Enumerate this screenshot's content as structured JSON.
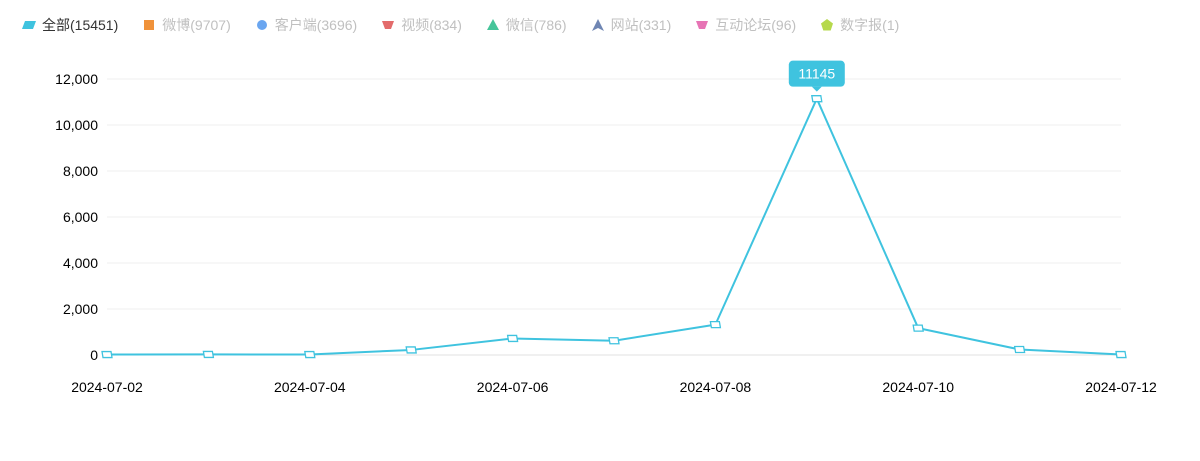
{
  "legend": {
    "items": [
      {
        "label": "全部(15451)",
        "color": "#3fc3df",
        "shape": "parallelogram",
        "active": true,
        "icon": "parallelogram-icon"
      },
      {
        "label": "微博(9707)",
        "color": "#f0923a",
        "shape": "square",
        "active": false,
        "icon": "square-icon"
      },
      {
        "label": "客户端(3696)",
        "color": "#6aa6f0",
        "shape": "circle",
        "active": false,
        "icon": "circle-icon"
      },
      {
        "label": "视频(834)",
        "color": "#e36b6b",
        "shape": "trapezoid",
        "active": false,
        "icon": "trapezoid-icon"
      },
      {
        "label": "微信(786)",
        "color": "#46c59a",
        "shape": "triangle",
        "active": false,
        "icon": "triangle-icon"
      },
      {
        "label": "网站(331)",
        "color": "#6f86b3",
        "shape": "arrow",
        "active": false,
        "icon": "arrow-icon"
      },
      {
        "label": "互动论坛(96)",
        "color": "#e774b5",
        "shape": "trapezoid",
        "active": false,
        "icon": "trapezoid-icon"
      },
      {
        "label": "数字报(1)",
        "color": "#b6d94c",
        "shape": "pentagon",
        "active": false,
        "icon": "pentagon-icon"
      }
    ]
  },
  "chart_data": {
    "type": "line",
    "x": [
      "2024-07-02",
      "2024-07-03",
      "2024-07-04",
      "2024-07-05",
      "2024-07-06",
      "2024-07-07",
      "2024-07-08",
      "2024-07-09",
      "2024-07-10",
      "2024-07-11",
      "2024-07-12"
    ],
    "x_tick_labels": [
      "2024-07-02",
      "2024-07-04",
      "2024-07-06",
      "2024-07-08",
      "2024-07-10",
      "2024-07-12"
    ],
    "series": [
      {
        "name": "全部(15451)",
        "color": "#3fc3df",
        "values": [
          20,
          25,
          20,
          220,
          720,
          620,
          1320,
          11145,
          1170,
          240,
          20
        ]
      }
    ],
    "ylim": [
      0,
      12000
    ],
    "yticks": [
      0,
      2000,
      4000,
      6000,
      8000,
      10000,
      12000
    ],
    "ytick_labels": [
      "0",
      "2,000",
      "4,000",
      "6,000",
      "8,000",
      "10,000",
      "12,000"
    ],
    "tooltip": {
      "label": "11145",
      "point_index": 7
    },
    "grid": true
  }
}
